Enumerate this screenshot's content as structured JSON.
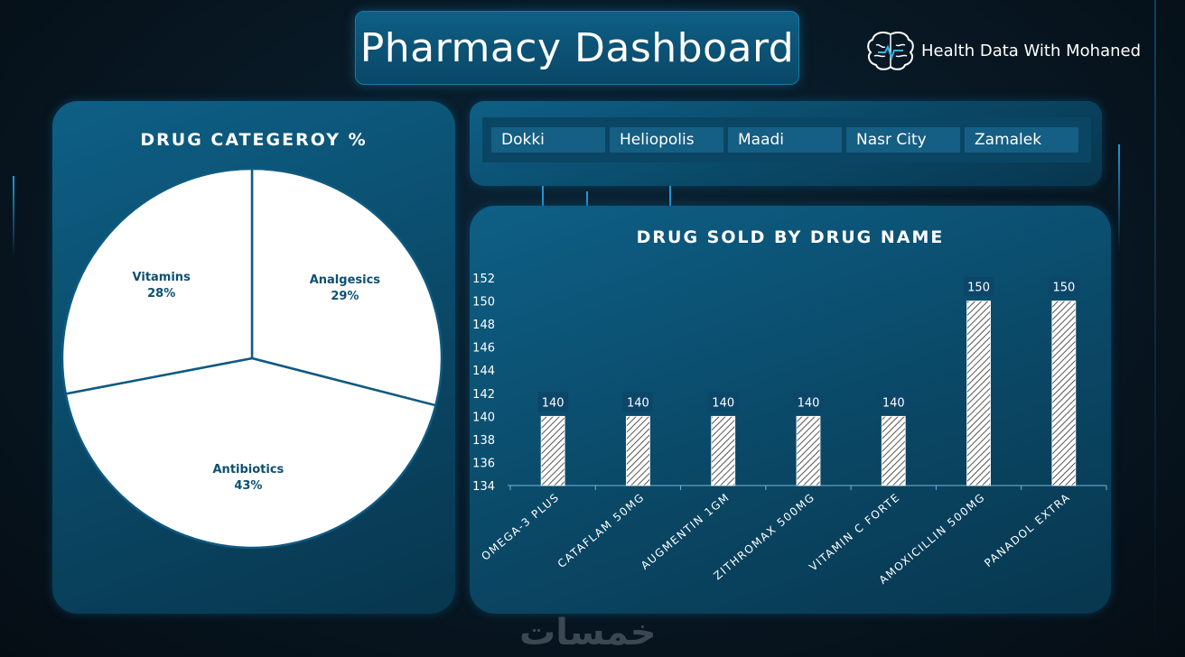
{
  "header": {
    "title": "Pharmacy Dashboard",
    "brand": "Health Data With Mohaned"
  },
  "slicer": {
    "items": [
      "Dokki",
      "Heliopolis",
      "Maadi",
      "Nasr City",
      "Zamalek"
    ]
  },
  "watermark": "خمسات",
  "colors": {
    "panel": "#0a4866",
    "accent": "#1e9be0",
    "label": "#0d4f73",
    "bar_fill": "#ffffff"
  },
  "chart_data": [
    {
      "type": "pie",
      "title": "DRUG CATEGEROY %",
      "slices": [
        {
          "label": "Analgesics",
          "value": 29,
          "value_label": "29%"
        },
        {
          "label": "Antibiotics",
          "value": 43,
          "value_label": "43%"
        },
        {
          "label": "Vitamins",
          "value": 28,
          "value_label": "28%"
        }
      ]
    },
    {
      "type": "bar",
      "title": "DRUG SOLD BY DRUG NAME",
      "categories": [
        "OMEGA-3 PLUS",
        "CATAFLAM 50MG",
        "AUGMENTIN 1GM",
        "ZITHROMAX 500MG",
        "VITAMIN C FORTE",
        "AMOXICILLIN 500MG",
        "PANADOL EXTRA"
      ],
      "values": [
        140,
        140,
        140,
        140,
        140,
        150,
        150
      ],
      "ylim": [
        134,
        152
      ],
      "yticks": [
        134,
        136,
        138,
        140,
        142,
        144,
        146,
        148,
        150,
        152
      ],
      "grid": false,
      "legend": "none"
    }
  ]
}
